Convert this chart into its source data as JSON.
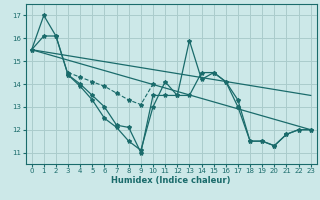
{
  "xlabel": "Humidex (Indice chaleur)",
  "xlim": [
    -0.5,
    23.5
  ],
  "ylim": [
    10.5,
    17.5
  ],
  "yticks": [
    11,
    12,
    13,
    14,
    15,
    16,
    17
  ],
  "xticks": [
    0,
    1,
    2,
    3,
    4,
    5,
    6,
    7,
    8,
    9,
    10,
    11,
    12,
    13,
    14,
    15,
    16,
    17,
    18,
    19,
    20,
    21,
    22,
    23
  ],
  "bg": "#cce8e8",
  "grid_color": "#aacccc",
  "lc": "#1a6b6b",
  "line1_x": [
    0,
    1,
    2,
    3,
    4,
    5,
    6,
    7,
    8,
    9,
    10,
    11,
    12,
    13,
    14,
    15,
    16,
    17,
    18,
    19,
    20,
    21,
    22,
    23
  ],
  "line1_y": [
    15.5,
    17.0,
    16.1,
    14.4,
    13.9,
    13.3,
    12.5,
    12.1,
    11.5,
    11.1,
    13.0,
    14.1,
    13.5,
    15.9,
    14.2,
    14.5,
    14.1,
    13.3,
    11.5,
    11.5,
    11.3,
    11.8,
    12.0,
    12.0
  ],
  "line2_x": [
    0,
    1,
    2,
    3,
    4,
    5,
    6,
    7,
    8,
    9,
    10,
    11,
    12,
    13,
    14,
    15,
    16,
    17,
    18,
    19,
    20,
    21,
    22,
    23
  ],
  "line2_y": [
    15.5,
    16.1,
    16.1,
    14.4,
    14.0,
    13.5,
    13.0,
    12.2,
    12.1,
    11.0,
    13.5,
    13.5,
    13.5,
    13.5,
    14.5,
    14.5,
    14.1,
    13.0,
    11.5,
    11.5,
    11.3,
    11.8,
    12.0,
    12.0
  ],
  "trend1_x": [
    0,
    23
  ],
  "trend1_y": [
    15.5,
    12.0
  ],
  "trend2_x": [
    0,
    23
  ],
  "trend2_y": [
    15.5,
    13.5
  ],
  "seg_x": [
    3,
    4,
    5,
    6,
    7,
    8,
    9,
    10
  ],
  "seg_y": [
    14.5,
    14.3,
    14.1,
    13.9,
    13.6,
    13.3,
    13.1,
    14.0
  ]
}
